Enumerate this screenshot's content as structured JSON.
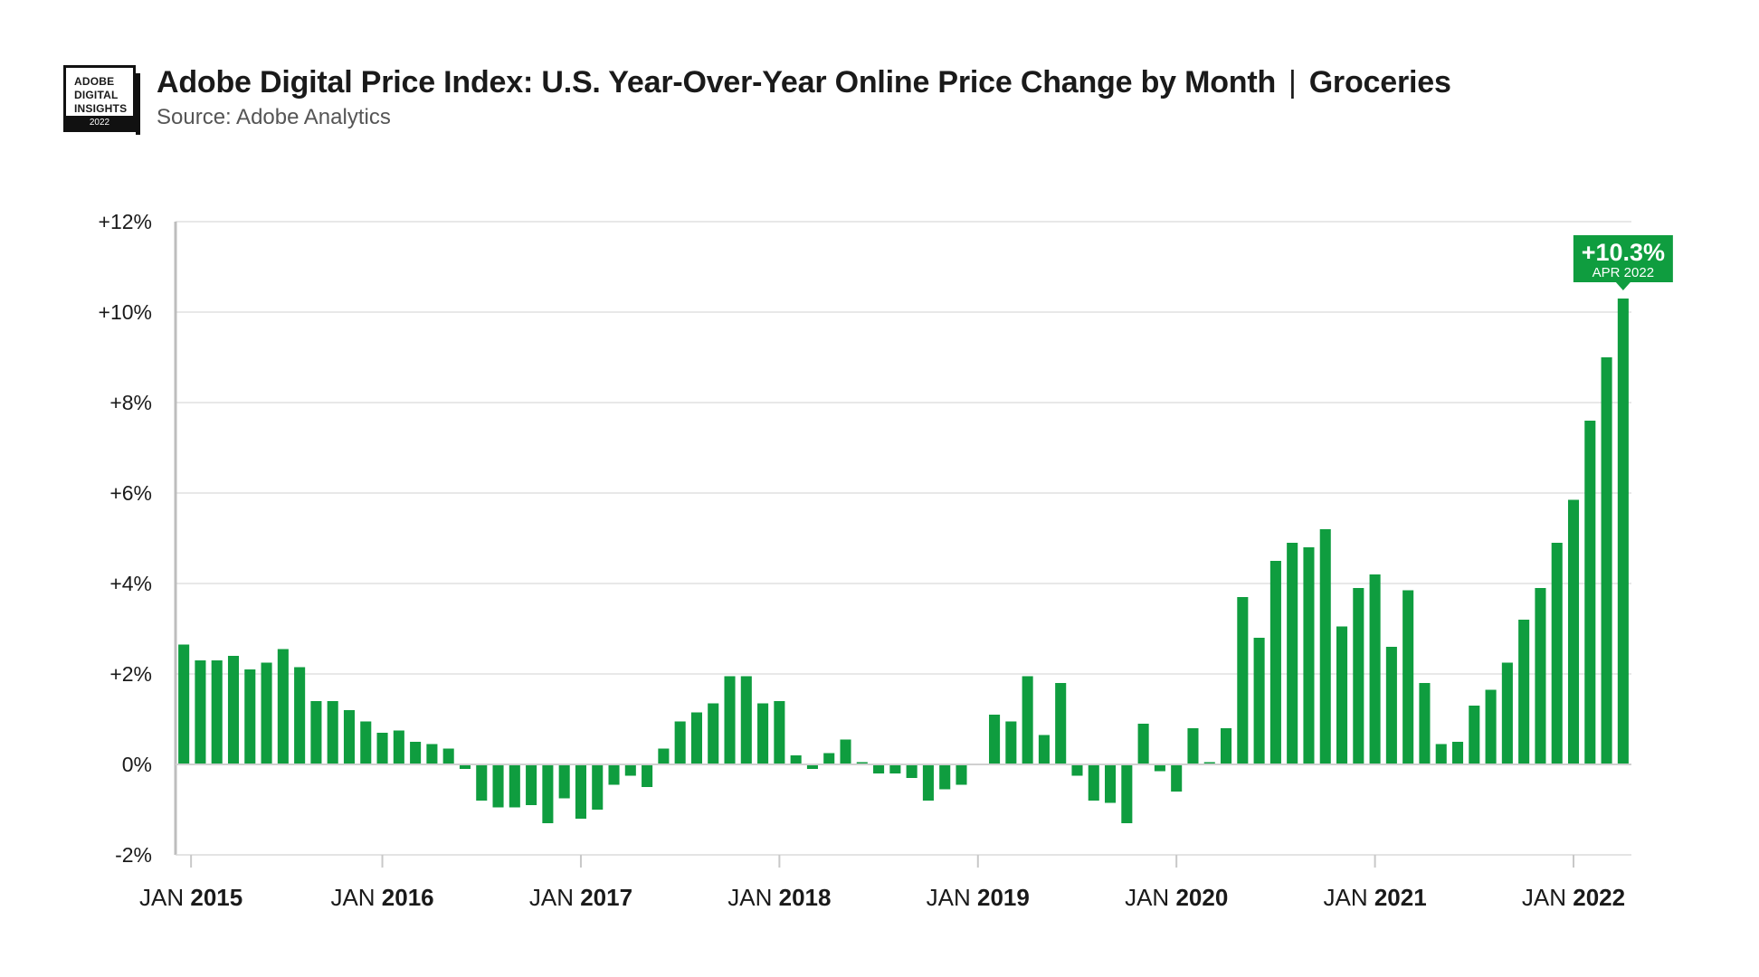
{
  "badge": {
    "lines": [
      "ADOBE",
      "DIGITAL",
      "INSIGHTS"
    ],
    "year": "2022"
  },
  "header": {
    "title": "Adobe Digital Price Index: U.S. Year-Over-Year Online Price Change by Month",
    "separator": "|",
    "category": "Groceries",
    "source": "Source: Adobe Analytics"
  },
  "chart_data": {
    "type": "bar",
    "bar_color": "#0f9d3f",
    "grid": true,
    "ylim": [
      -2,
      12
    ],
    "y_ticks": [
      {
        "value": 12,
        "label": "+12%"
      },
      {
        "value": 10,
        "label": "+10%"
      },
      {
        "value": 8,
        "label": "+8%"
      },
      {
        "value": 6,
        "label": "+6%"
      },
      {
        "value": 4,
        "label": "+4%"
      },
      {
        "value": 2,
        "label": "+2%"
      },
      {
        "value": 0,
        "label": "0%"
      },
      {
        "value": -2,
        "label": "-2%"
      }
    ],
    "x_ticks": [
      {
        "month": "JAN",
        "year": "2015",
        "index": 0
      },
      {
        "month": "JAN",
        "year": "2016",
        "index": 12
      },
      {
        "month": "JAN",
        "year": "2017",
        "index": 24
      },
      {
        "month": "JAN",
        "year": "2018",
        "index": 36
      },
      {
        "month": "JAN",
        "year": "2019",
        "index": 48
      },
      {
        "month": "JAN",
        "year": "2020",
        "index": 60
      },
      {
        "month": "JAN",
        "year": "2021",
        "index": 72
      },
      {
        "month": "JAN",
        "year": "2022",
        "index": 84
      }
    ],
    "months": [
      "2015-01",
      "2015-02",
      "2015-03",
      "2015-04",
      "2015-05",
      "2015-06",
      "2015-07",
      "2015-08",
      "2015-09",
      "2015-10",
      "2015-11",
      "2015-12",
      "2016-01",
      "2016-02",
      "2016-03",
      "2016-04",
      "2016-05",
      "2016-06",
      "2016-07",
      "2016-08",
      "2016-09",
      "2016-10",
      "2016-11",
      "2016-12",
      "2017-01",
      "2017-02",
      "2017-03",
      "2017-04",
      "2017-05",
      "2017-06",
      "2017-07",
      "2017-08",
      "2017-09",
      "2017-10",
      "2017-11",
      "2017-12",
      "2018-01",
      "2018-02",
      "2018-03",
      "2018-04",
      "2018-05",
      "2018-06",
      "2018-07",
      "2018-08",
      "2018-09",
      "2018-10",
      "2018-11",
      "2018-12",
      "2019-01",
      "2019-02",
      "2019-03",
      "2019-04",
      "2019-05",
      "2019-06",
      "2019-07",
      "2019-08",
      "2019-09",
      "2019-10",
      "2019-11",
      "2019-12",
      "2020-01",
      "2020-02",
      "2020-03",
      "2020-04",
      "2020-05",
      "2020-06",
      "2020-07",
      "2020-08",
      "2020-09",
      "2020-10",
      "2020-11",
      "2020-12",
      "2021-01",
      "2021-02",
      "2021-03",
      "2021-04",
      "2021-05",
      "2021-06",
      "2021-07",
      "2021-08",
      "2021-09",
      "2021-10",
      "2021-11",
      "2021-12",
      "2022-01",
      "2022-02",
      "2022-03",
      "2022-04"
    ],
    "values": [
      2.65,
      2.3,
      2.3,
      2.4,
      2.1,
      2.25,
      2.55,
      2.15,
      1.4,
      1.4,
      1.2,
      0.95,
      0.7,
      0.75,
      0.5,
      0.45,
      0.35,
      -0.1,
      -0.8,
      -0.95,
      -0.95,
      -0.9,
      -1.3,
      -0.75,
      -1.2,
      -1.0,
      -0.45,
      -0.25,
      -0.5,
      0.35,
      0.95,
      1.15,
      1.35,
      1.95,
      1.95,
      1.35,
      1.4,
      0.2,
      -0.1,
      0.25,
      0.55,
      0.05,
      -0.2,
      -0.2,
      -0.3,
      -0.8,
      -0.55,
      -0.45,
      0.0,
      1.1,
      0.95,
      1.95,
      0.65,
      1.8,
      -0.25,
      -0.8,
      -0.85,
      -1.3,
      0.9,
      -0.15,
      -0.6,
      0.8,
      0.05,
      0.8,
      3.7,
      2.8,
      4.5,
      4.9,
      4.8,
      5.2,
      3.05,
      3.9,
      4.2,
      2.6,
      3.85,
      1.8,
      0.45,
      0.5,
      1.3,
      1.65,
      2.25,
      3.2,
      3.9,
      4.9,
      5.85,
      7.6,
      9.0,
      10.3
    ],
    "annotation": {
      "value_label": "+10.3%",
      "date_label": "APR 2022",
      "index": 87,
      "color": "#0f9d3f"
    }
  }
}
